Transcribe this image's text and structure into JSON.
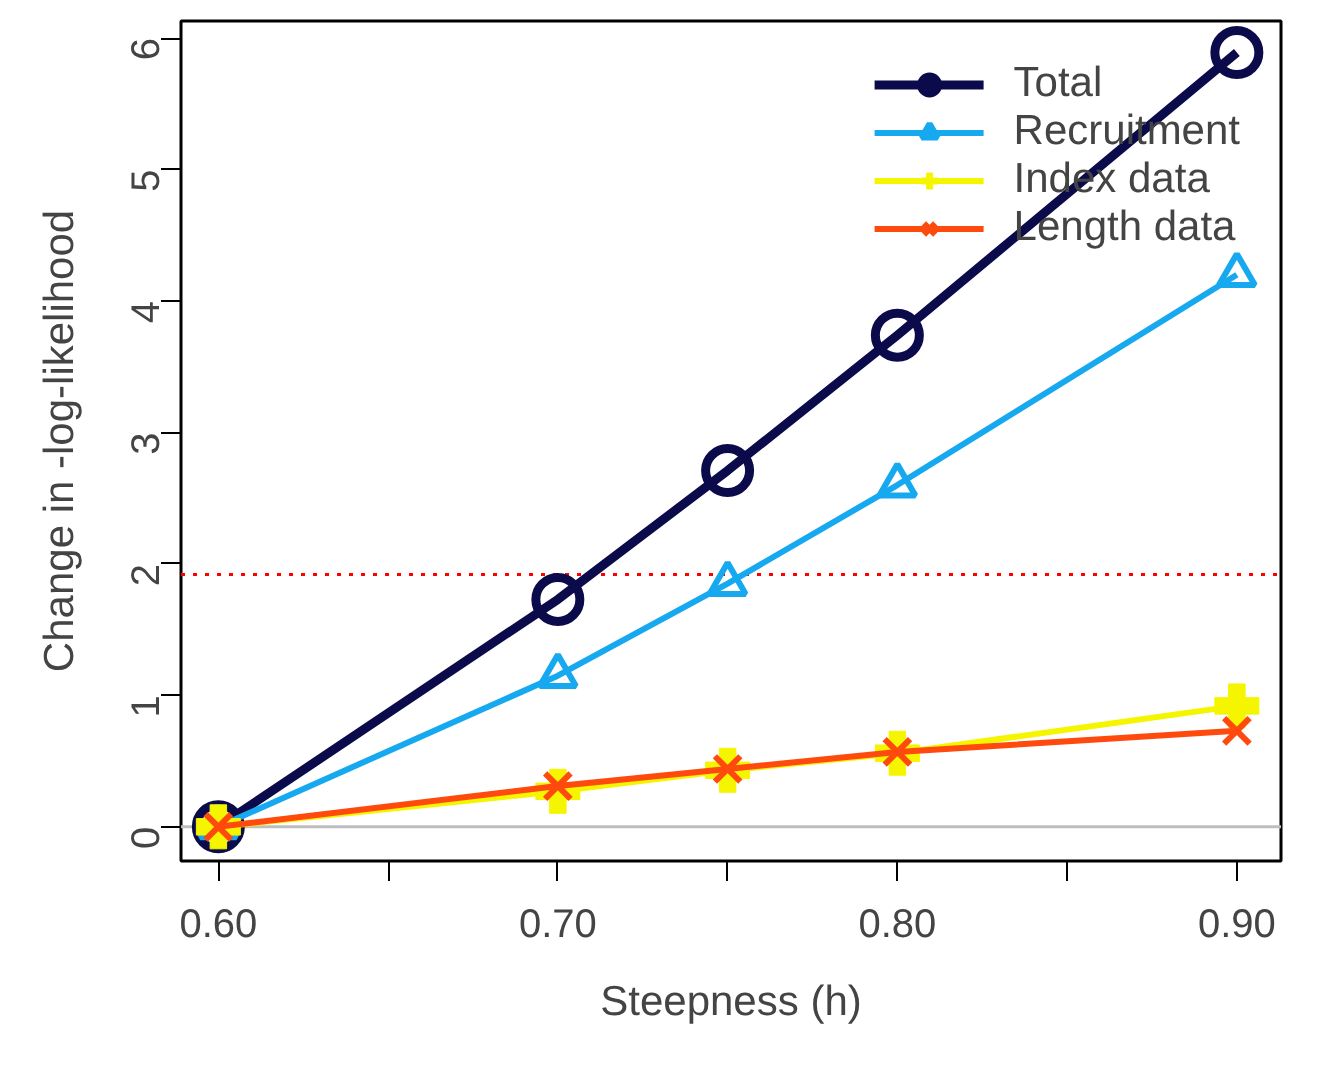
{
  "chart_data": {
    "type": "line",
    "xlabel": "Steepness (h)",
    "ylabel": "Change in -log-likelihood",
    "x": [
      0.6,
      0.7,
      0.75,
      0.8,
      0.9
    ],
    "series": [
      {
        "name": "Total",
        "color": "#0b0a4a",
        "marker": "circle",
        "values": [
          0,
          1.73,
          2.71,
          3.74,
          5.89
        ]
      },
      {
        "name": "Recruitment",
        "color": "#17a9f0",
        "marker": "triangle",
        "values": [
          0,
          1.15,
          1.85,
          2.6,
          4.2
        ]
      },
      {
        "name": "Index data",
        "color": "#f5f500",
        "marker": "cross",
        "values": [
          0,
          0.27,
          0.43,
          0.56,
          0.92
        ]
      },
      {
        "name": "Length data",
        "color": "#ff4a0e",
        "marker": "x",
        "values": [
          0,
          0.31,
          0.44,
          0.57,
          0.73
        ]
      }
    ],
    "xlim": [
      0.589,
      0.913
    ],
    "ylim": [
      -0.26,
      6.13
    ],
    "xticks": [
      {
        "value": 0.6,
        "label": "0.60"
      },
      {
        "value": 0.65,
        "label": null
      },
      {
        "value": 0.7,
        "label": "0.70"
      },
      {
        "value": 0.75,
        "label": null
      },
      {
        "value": 0.8,
        "label": "0.80"
      },
      {
        "value": 0.85,
        "label": null
      },
      {
        "value": 0.9,
        "label": "0.90"
      }
    ],
    "yticks": [
      0,
      1,
      2,
      3,
      4,
      5,
      6
    ],
    "ref_lines": [
      {
        "axis": "y",
        "value": 1.92,
        "color": "#ff0000",
        "line_style": "dotted"
      },
      {
        "axis": "y",
        "value": 0,
        "color": "#bebebe",
        "line_style": "solid"
      }
    ],
    "grid": false,
    "legend": "top right"
  }
}
